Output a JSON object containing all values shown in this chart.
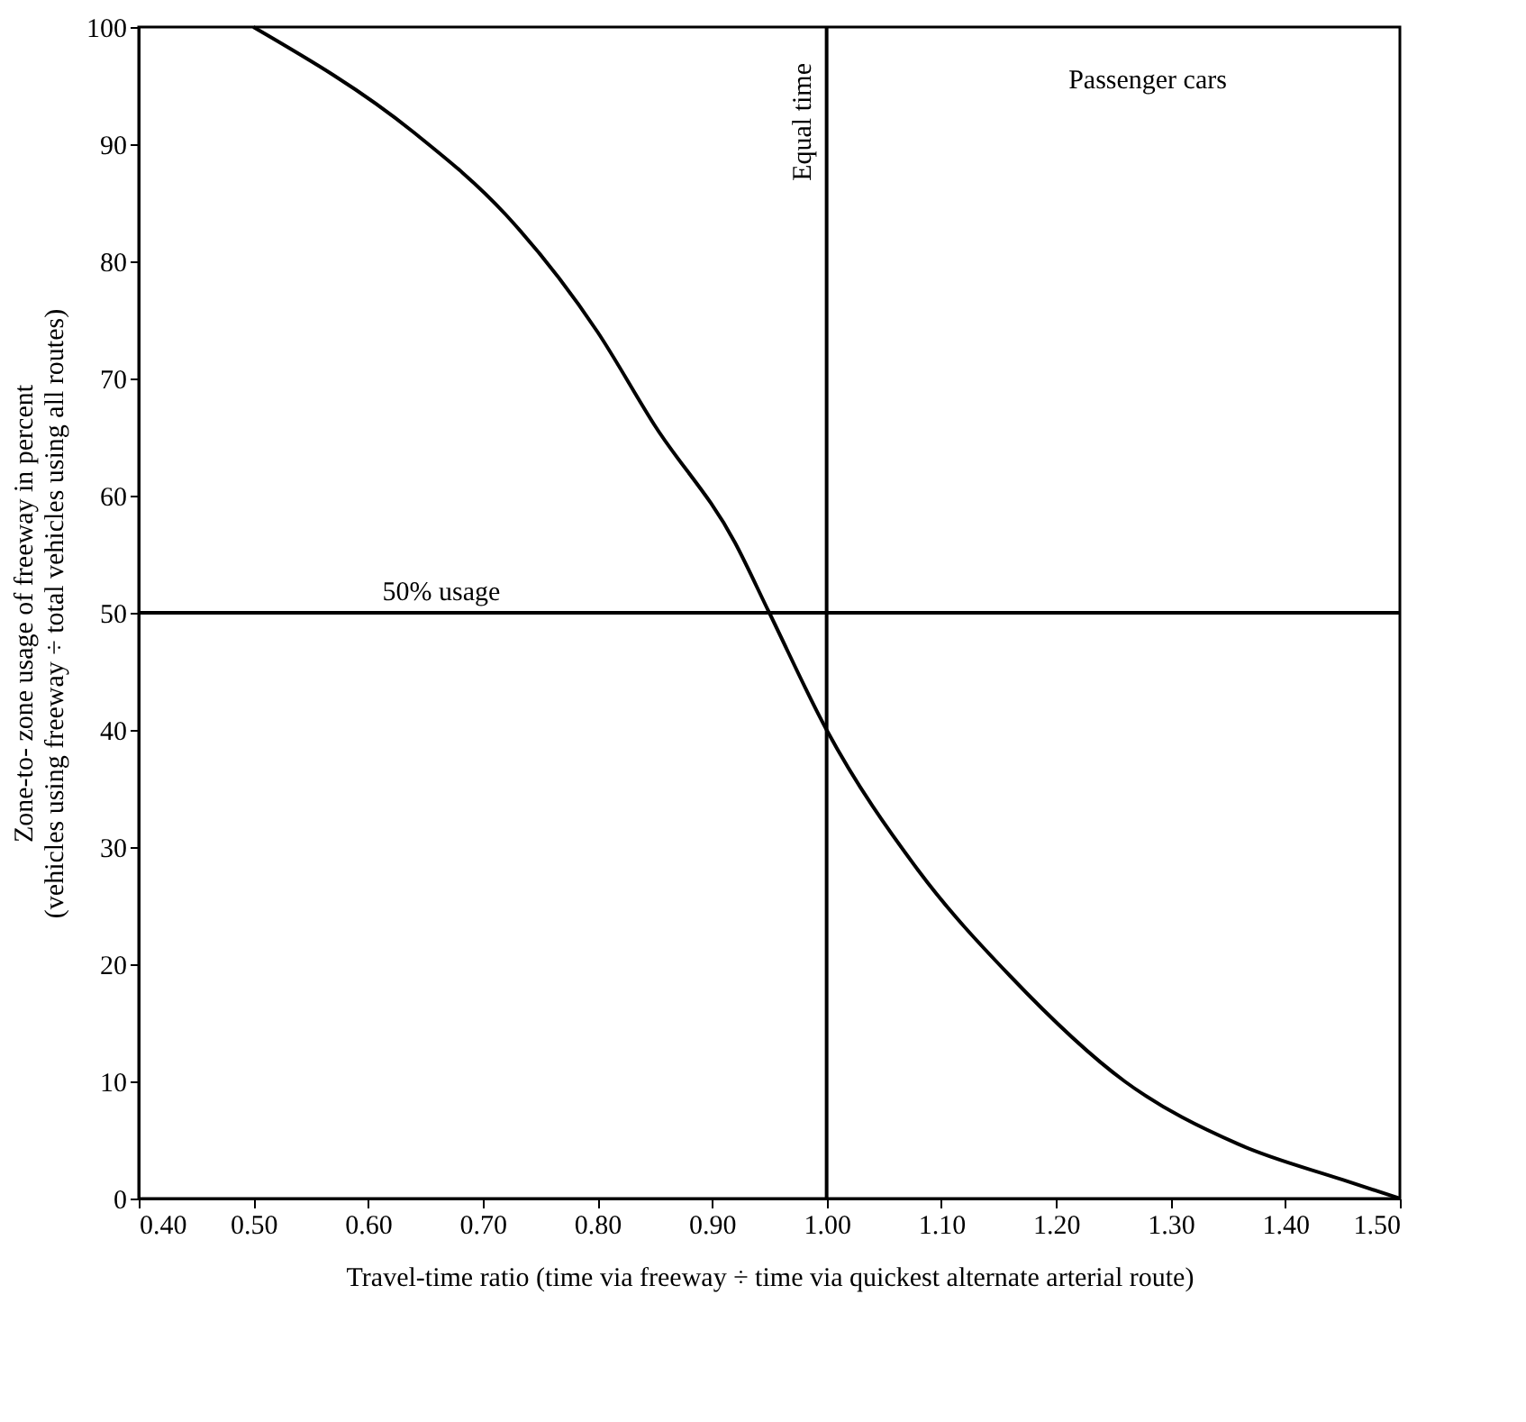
{
  "chart_data": {
    "type": "line",
    "xlabel": "Travel-time ratio (time via freeway ÷ time via quickest alternate arterial route)",
    "ylabel": "Zone-to- zone usage of freeway in percent\n(vehicles using freeway ÷ total vehicles using all routes)",
    "x": [
      0.5,
      0.64,
      0.72,
      0.8,
      0.85,
      0.92,
      0.95,
      1.0,
      1.08,
      1.16,
      1.26,
      1.36,
      1.45,
      1.5
    ],
    "series": [
      {
        "color": "#000000",
        "values": [
          100,
          91,
          84,
          74,
          66,
          56,
          50,
          40,
          28,
          19,
          10,
          4.6,
          1.6,
          0
        ]
      }
    ],
    "xlim": [
      0.4,
      1.5
    ],
    "xticks": [
      {
        "value": 0.4,
        "label": "0.40"
      },
      {
        "value": 0.5,
        "label": "0.50"
      },
      {
        "value": 0.6,
        "label": "0.60"
      },
      {
        "value": 0.7,
        "label": "0.70"
      },
      {
        "value": 0.8,
        "label": "0.80"
      },
      {
        "value": 0.9,
        "label": "0.90"
      },
      {
        "value": 1.0,
        "label": "1.00"
      },
      {
        "value": 1.1,
        "label": "1.10"
      },
      {
        "value": 1.2,
        "label": "1.20"
      },
      {
        "value": 1.3,
        "label": "1.30"
      },
      {
        "value": 1.4,
        "label": "1.40"
      },
      {
        "value": 1.5,
        "label": "1.50"
      }
    ],
    "ylim": [
      0,
      100
    ],
    "yticks": [
      0,
      10,
      20,
      30,
      40,
      50,
      60,
      70,
      80,
      90,
      100
    ],
    "ref_lines": [
      {
        "axis": "y",
        "value": 50,
        "label": "50% usage",
        "color": "#000000"
      },
      {
        "axis": "x",
        "value": 1.0,
        "label": "Equal time",
        "color": "#000000"
      }
    ],
    "annotations": [
      "Passenger cars"
    ],
    "grid": false,
    "marker": "none",
    "line_style": "solid"
  }
}
